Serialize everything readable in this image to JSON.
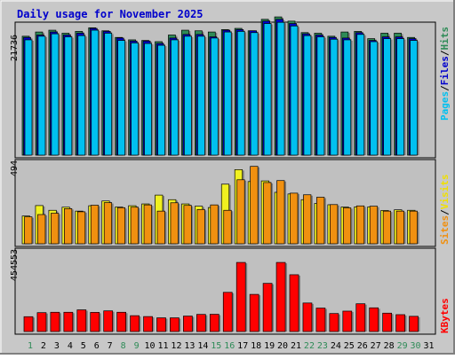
{
  "title": "Daily usage for November 2025",
  "colors": {
    "frame_bg": "#c8c8c8",
    "panel_bg": "#c0c0c0",
    "hits": "#2e8b57",
    "files": "#0000cc",
    "pages": "#00c0f0",
    "visits": "#f0f020",
    "sites": "#f09010",
    "kbytes": "#ff0000",
    "title": "#0000cc",
    "weekday_label": "#000000",
    "weekend_label": "#2e8b57"
  },
  "legend": {
    "hits": "Hits",
    "files": "Files",
    "pages": "Pages",
    "visits": "Visits",
    "sites": "Sites",
    "kbytes": "KBytes",
    "sep": "/"
  },
  "chart_data": [
    {
      "type": "bar",
      "panel": "hits-files-pages",
      "ytick": "21736",
      "ymax": 21736,
      "categories": [
        "1",
        "2",
        "3",
        "4",
        "5",
        "6",
        "7",
        "8",
        "9",
        "10",
        "11",
        "12",
        "13",
        "14",
        "15",
        "16",
        "17",
        "18",
        "19",
        "20",
        "21",
        "22",
        "23",
        "24",
        "25",
        "26",
        "27",
        "28",
        "29",
        "30",
        "31"
      ],
      "series": [
        {
          "name": "Hits",
          "values": [
            19700,
            20400,
            20700,
            20200,
            20500,
            21100,
            20600,
            19500,
            19100,
            19000,
            18800,
            19900,
            20700,
            20600,
            20400,
            20800,
            21000,
            20600,
            22500,
            22900,
            22200,
            20300,
            20200,
            19700,
            20400,
            20500,
            19300,
            20200,
            20200,
            19500,
            0
          ]
        },
        {
          "name": "Files",
          "values": [
            19500,
            19900,
            20400,
            19900,
            20200,
            21000,
            20500,
            19400,
            18900,
            18900,
            18500,
            19400,
            20000,
            20000,
            19600,
            20700,
            20800,
            20600,
            22200,
            22500,
            21800,
            20100,
            19900,
            19500,
            19400,
            20300,
            19000,
            19600,
            19600,
            19300,
            0
          ]
        },
        {
          "name": "Pages",
          "values": [
            19100,
            19700,
            20100,
            19600,
            19800,
            20700,
            20200,
            19000,
            18600,
            18500,
            18200,
            19100,
            19700,
            19700,
            19400,
            20400,
            20500,
            20300,
            21800,
            22000,
            21400,
            19800,
            19600,
            19200,
            19100,
            20000,
            18800,
            19300,
            19300,
            19000,
            0
          ]
        }
      ]
    },
    {
      "type": "bar",
      "panel": "visits-sites",
      "ytick": "494",
      "ymax": 494,
      "categories": [
        "1",
        "2",
        "3",
        "4",
        "5",
        "6",
        "7",
        "8",
        "9",
        "10",
        "11",
        "12",
        "13",
        "14",
        "15",
        "16",
        "17",
        "18",
        "19",
        "20",
        "21",
        "22",
        "23",
        "24",
        "25",
        "26",
        "27",
        "28",
        "29",
        "30",
        "31"
      ],
      "series": [
        {
          "name": "Visits",
          "values": [
            170,
            234,
            205,
            224,
            200,
            233,
            262,
            225,
            233,
            244,
            298,
            270,
            244,
            230,
            222,
            365,
            454,
            381,
            385,
            315,
            305,
            270,
            247,
            239,
            225,
            226,
            226,
            204,
            208,
            205,
            0
          ]
        },
        {
          "name": "Sites",
          "values": [
            165,
            179,
            187,
            215,
            196,
            236,
            252,
            221,
            224,
            238,
            200,
            251,
            235,
            210,
            238,
            205,
            392,
            474,
            375,
            387,
            310,
            300,
            285,
            240,
            220,
            232,
            230,
            200,
            200,
            200,
            0
          ]
        }
      ]
    },
    {
      "type": "bar",
      "panel": "kbytes",
      "ytick": "454553",
      "ymax": 454553,
      "categories": [
        "1",
        "2",
        "3",
        "4",
        "5",
        "6",
        "7",
        "8",
        "9",
        "10",
        "11",
        "12",
        "13",
        "14",
        "15",
        "16",
        "17",
        "18",
        "19",
        "20",
        "21",
        "22",
        "23",
        "24",
        "25",
        "26",
        "27",
        "28",
        "29",
        "30",
        "31"
      ],
      "series": [
        {
          "name": "KBytes",
          "values": [
            117000,
            149000,
            152000,
            152000,
            171000,
            151000,
            163000,
            152000,
            125000,
            118000,
            108000,
            108000,
            122000,
            135000,
            136000,
            309000,
            545000,
            293000,
            380000,
            545000,
            448000,
            225000,
            185000,
            142000,
            161000,
            219000,
            187000,
            145000,
            133000,
            120000,
            0
          ]
        }
      ]
    }
  ],
  "x_labels": [
    "1",
    "2",
    "3",
    "4",
    "5",
    "6",
    "7",
    "8",
    "9",
    "10",
    "11",
    "12",
    "13",
    "14",
    "15",
    "16",
    "17",
    "18",
    "19",
    "20",
    "21",
    "22",
    "23",
    "24",
    "25",
    "26",
    "27",
    "28",
    "29",
    "30",
    "31"
  ],
  "weekend_days": [
    1,
    8,
    9,
    15,
    16,
    22,
    23,
    29,
    30
  ]
}
